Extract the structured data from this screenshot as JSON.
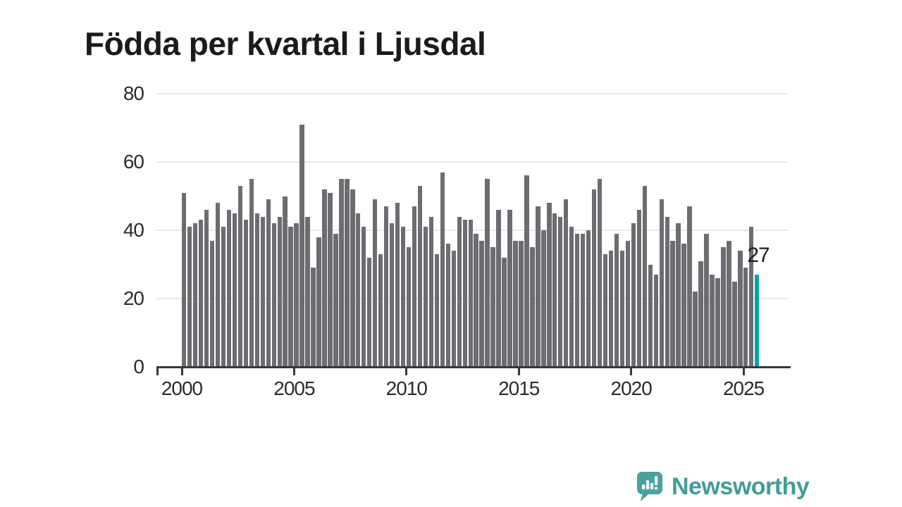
{
  "title": "Födda per kvartal i Ljusdal",
  "annotation": {
    "last_value_label": "27"
  },
  "branding": {
    "name": "Newsworthy",
    "icon": "speech-bubble-chart-icon"
  },
  "colors": {
    "bar": "#6c6c71",
    "highlight": "#00a69d",
    "grid": "#e9e9e9",
    "axis": "#383838",
    "tick_text": "#2b2b2b",
    "title_text": "#1b1b1b",
    "brand": "#3f9d99",
    "background": "#ffffff"
  },
  "chart_data": {
    "type": "bar",
    "title": "Födda per kvartal i Ljusdal",
    "frequency": "quarterly",
    "x_start": "2000-Q1",
    "x_end": "2025-Q3",
    "values": [
      51,
      41,
      42,
      43,
      46,
      37,
      48,
      41,
      46,
      45,
      53,
      43,
      55,
      45,
      44,
      49,
      42,
      44,
      50,
      41,
      42,
      71,
      44,
      29,
      38,
      52,
      51,
      39,
      55,
      55,
      52,
      45,
      41,
      32,
      49,
      33,
      47,
      42,
      48,
      41,
      35,
      47,
      53,
      41,
      44,
      33,
      57,
      36,
      34,
      44,
      43,
      43,
      39,
      37,
      55,
      35,
      46,
      32,
      46,
      37,
      37,
      56,
      35,
      47,
      40,
      48,
      45,
      44,
      49,
      41,
      39,
      39,
      40,
      52,
      55,
      33,
      34,
      39,
      34,
      37,
      42,
      46,
      53,
      30,
      27,
      49,
      44,
      37,
      42,
      36,
      47,
      22,
      31,
      39,
      27,
      26,
      35,
      37,
      25,
      34,
      29,
      41,
      27
    ],
    "highlight_index": 102,
    "highlight_value_label": "27",
    "ylim": [
      0,
      80
    ],
    "y_ticks": [
      0,
      20,
      40,
      60,
      80
    ],
    "x_tick_labels": [
      "2000",
      "2005",
      "2010",
      "2015",
      "2020",
      "2025"
    ],
    "x_tick_quarter_offsets": [
      0,
      20,
      40,
      60,
      80,
      100
    ],
    "grid": true,
    "legend": false
  }
}
